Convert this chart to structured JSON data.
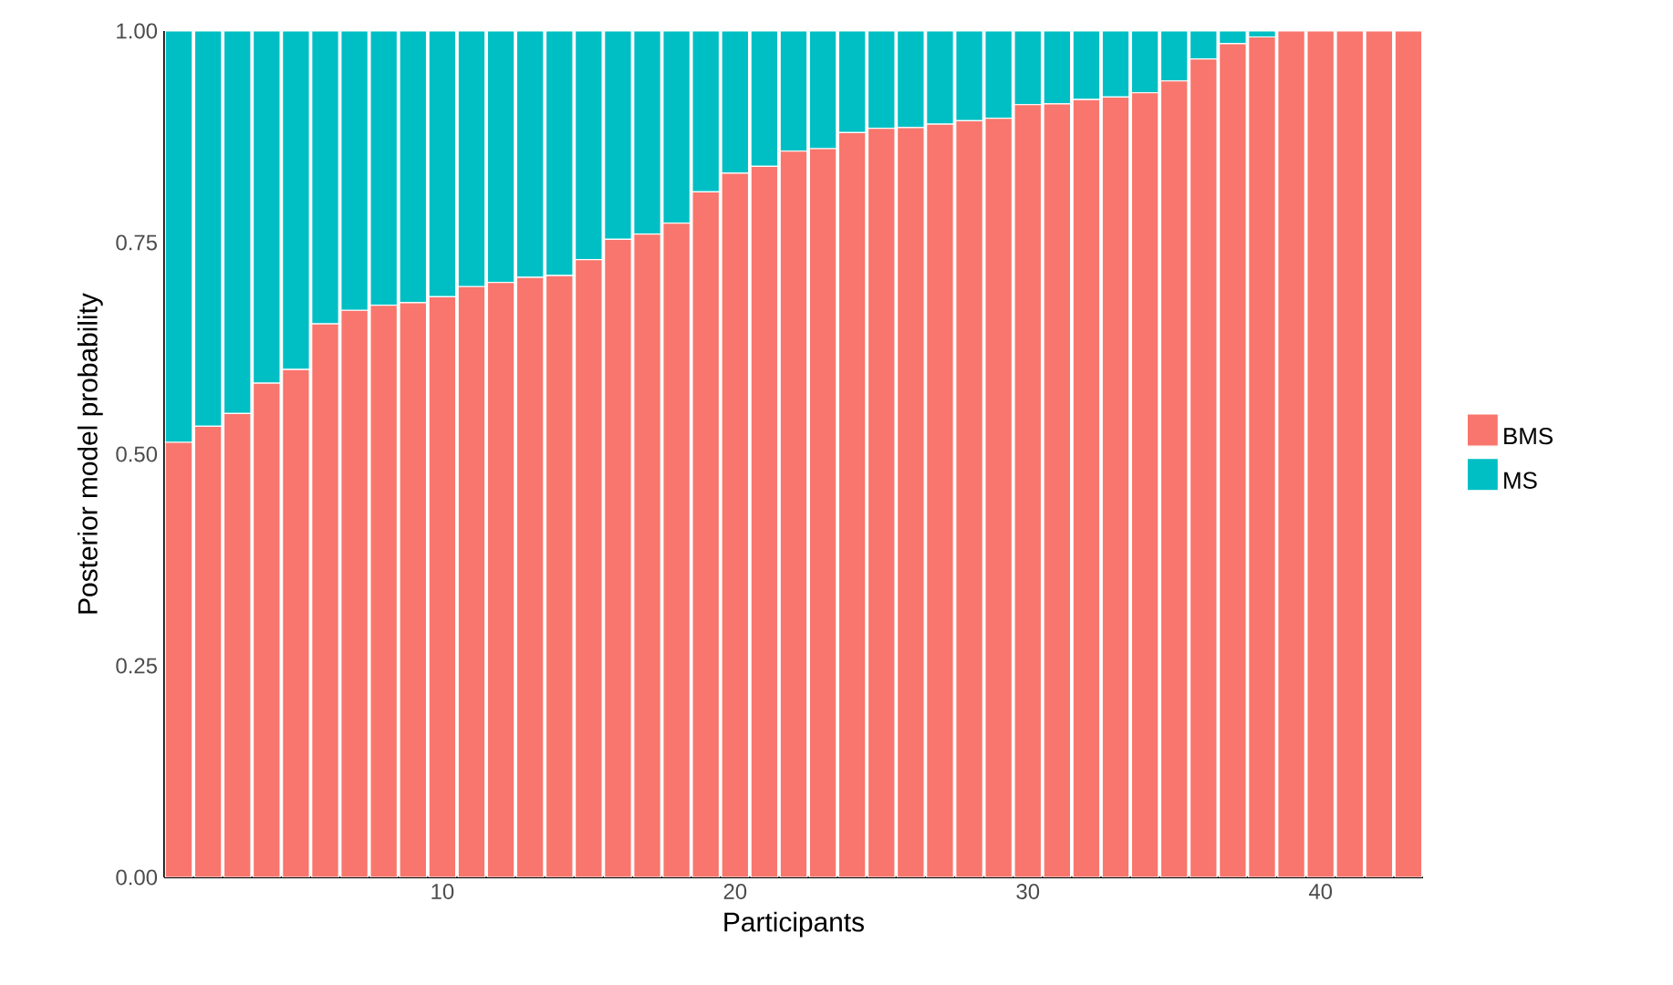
{
  "chart_data": {
    "type": "bar",
    "stacked": true,
    "xlabel": "Participants",
    "ylabel": "Posterior model probability",
    "x": [
      1,
      2,
      3,
      4,
      5,
      6,
      7,
      8,
      9,
      10,
      11,
      12,
      13,
      14,
      15,
      16,
      17,
      18,
      19,
      20,
      21,
      22,
      23,
      24,
      25,
      26,
      27,
      28,
      29,
      30,
      31,
      32,
      33,
      34,
      35,
      36,
      37,
      38,
      39,
      40,
      41,
      42,
      43
    ],
    "series": [
      {
        "name": "BMS",
        "color": "#f8766d",
        "values": [
          0.514,
          0.533,
          0.548,
          0.584,
          0.6,
          0.654,
          0.67,
          0.676,
          0.679,
          0.686,
          0.698,
          0.703,
          0.709,
          0.711,
          0.73,
          0.754,
          0.76,
          0.773,
          0.81,
          0.832,
          0.84,
          0.858,
          0.861,
          0.88,
          0.885,
          0.886,
          0.89,
          0.894,
          0.897,
          0.913,
          0.914,
          0.919,
          0.922,
          0.927,
          0.941,
          0.967,
          0.985,
          0.993,
          1.0,
          1.0,
          1.0,
          1.0,
          1.0
        ]
      },
      {
        "name": "MS",
        "color": "#00bfc4",
        "values": [
          0.486,
          0.467,
          0.452,
          0.416,
          0.4,
          0.346,
          0.33,
          0.324,
          0.321,
          0.314,
          0.302,
          0.297,
          0.291,
          0.289,
          0.27,
          0.246,
          0.24,
          0.227,
          0.19,
          0.168,
          0.16,
          0.142,
          0.139,
          0.12,
          0.115,
          0.114,
          0.11,
          0.106,
          0.103,
          0.087,
          0.086,
          0.081,
          0.078,
          0.073,
          0.059,
          0.033,
          0.015,
          0.007,
          0.0,
          0.0,
          0.0,
          0.0,
          0.0
        ]
      }
    ],
    "xlim": [
      0.5,
      43.5
    ],
    "xticks": [
      10,
      20,
      30,
      40
    ],
    "ylim": [
      0,
      1
    ],
    "yticks": [
      {
        "value": 0,
        "label": "0.00"
      },
      {
        "value": 0.25,
        "label": "0.25"
      },
      {
        "value": 0.5,
        "label": "0.50"
      },
      {
        "value": 0.75,
        "label": "0.75"
      },
      {
        "value": 1,
        "label": "1.00"
      }
    ],
    "legend": "right"
  }
}
